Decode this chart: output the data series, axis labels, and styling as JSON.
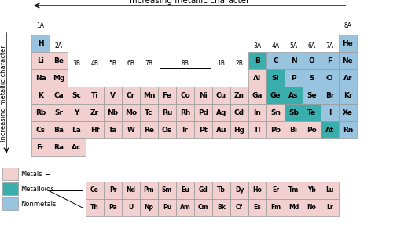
{
  "colors": {
    "metal": "#f2d0d0",
    "metalloid": "#3aadad",
    "nonmetal": "#99c4e0",
    "border": "#999999",
    "bg": "#ffffff"
  },
  "elements": {
    "main_table": [
      {
        "symbol": "H",
        "row": 0,
        "col": 0,
        "type": "nonmetal"
      },
      {
        "symbol": "He",
        "row": 0,
        "col": 17,
        "type": "nonmetal"
      },
      {
        "symbol": "Li",
        "row": 1,
        "col": 0,
        "type": "metal"
      },
      {
        "symbol": "Be",
        "row": 1,
        "col": 1,
        "type": "metal"
      },
      {
        "symbol": "B",
        "row": 1,
        "col": 12,
        "type": "metalloid"
      },
      {
        "symbol": "C",
        "row": 1,
        "col": 13,
        "type": "nonmetal"
      },
      {
        "symbol": "N",
        "row": 1,
        "col": 14,
        "type": "nonmetal"
      },
      {
        "symbol": "O",
        "row": 1,
        "col": 15,
        "type": "nonmetal"
      },
      {
        "symbol": "F",
        "row": 1,
        "col": 16,
        "type": "nonmetal"
      },
      {
        "symbol": "Ne",
        "row": 1,
        "col": 17,
        "type": "nonmetal"
      },
      {
        "symbol": "Na",
        "row": 2,
        "col": 0,
        "type": "metal"
      },
      {
        "symbol": "Mg",
        "row": 2,
        "col": 1,
        "type": "metal"
      },
      {
        "symbol": "Al",
        "row": 2,
        "col": 12,
        "type": "metal"
      },
      {
        "symbol": "Si",
        "row": 2,
        "col": 13,
        "type": "metalloid"
      },
      {
        "symbol": "P",
        "row": 2,
        "col": 14,
        "type": "nonmetal"
      },
      {
        "symbol": "S",
        "row": 2,
        "col": 15,
        "type": "nonmetal"
      },
      {
        "symbol": "Cl",
        "row": 2,
        "col": 16,
        "type": "nonmetal"
      },
      {
        "symbol": "Ar",
        "row": 2,
        "col": 17,
        "type": "nonmetal"
      },
      {
        "symbol": "K",
        "row": 3,
        "col": 0,
        "type": "metal"
      },
      {
        "symbol": "Ca",
        "row": 3,
        "col": 1,
        "type": "metal"
      },
      {
        "symbol": "Sc",
        "row": 3,
        "col": 2,
        "type": "metal"
      },
      {
        "symbol": "Ti",
        "row": 3,
        "col": 3,
        "type": "metal"
      },
      {
        "symbol": "V",
        "row": 3,
        "col": 4,
        "type": "metal"
      },
      {
        "symbol": "Cr",
        "row": 3,
        "col": 5,
        "type": "metal"
      },
      {
        "symbol": "Mn",
        "row": 3,
        "col": 6,
        "type": "metal"
      },
      {
        "symbol": "Fe",
        "row": 3,
        "col": 7,
        "type": "metal"
      },
      {
        "symbol": "Co",
        "row": 3,
        "col": 8,
        "type": "metal"
      },
      {
        "symbol": "Ni",
        "row": 3,
        "col": 9,
        "type": "metal"
      },
      {
        "symbol": "Cu",
        "row": 3,
        "col": 10,
        "type": "metal"
      },
      {
        "symbol": "Zn",
        "row": 3,
        "col": 11,
        "type": "metal"
      },
      {
        "symbol": "Ga",
        "row": 3,
        "col": 12,
        "type": "metal"
      },
      {
        "symbol": "Ge",
        "row": 3,
        "col": 13,
        "type": "metalloid"
      },
      {
        "symbol": "As",
        "row": 3,
        "col": 14,
        "type": "metalloid"
      },
      {
        "symbol": "Se",
        "row": 3,
        "col": 15,
        "type": "nonmetal"
      },
      {
        "symbol": "Br",
        "row": 3,
        "col": 16,
        "type": "nonmetal"
      },
      {
        "symbol": "Kr",
        "row": 3,
        "col": 17,
        "type": "nonmetal"
      },
      {
        "symbol": "Rb",
        "row": 4,
        "col": 0,
        "type": "metal"
      },
      {
        "symbol": "Sr",
        "row": 4,
        "col": 1,
        "type": "metal"
      },
      {
        "symbol": "Y",
        "row": 4,
        "col": 2,
        "type": "metal"
      },
      {
        "symbol": "Zr",
        "row": 4,
        "col": 3,
        "type": "metal"
      },
      {
        "symbol": "Nb",
        "row": 4,
        "col": 4,
        "type": "metal"
      },
      {
        "symbol": "Mo",
        "row": 4,
        "col": 5,
        "type": "metal"
      },
      {
        "symbol": "Tc",
        "row": 4,
        "col": 6,
        "type": "metal"
      },
      {
        "symbol": "Ru",
        "row": 4,
        "col": 7,
        "type": "metal"
      },
      {
        "symbol": "Rh",
        "row": 4,
        "col": 8,
        "type": "metal"
      },
      {
        "symbol": "Pd",
        "row": 4,
        "col": 9,
        "type": "metal"
      },
      {
        "symbol": "Ag",
        "row": 4,
        "col": 10,
        "type": "metal"
      },
      {
        "symbol": "Cd",
        "row": 4,
        "col": 11,
        "type": "metal"
      },
      {
        "symbol": "In",
        "row": 4,
        "col": 12,
        "type": "metal"
      },
      {
        "symbol": "Sn",
        "row": 4,
        "col": 13,
        "type": "metal"
      },
      {
        "symbol": "Sb",
        "row": 4,
        "col": 14,
        "type": "metalloid"
      },
      {
        "symbol": "Te",
        "row": 4,
        "col": 15,
        "type": "metalloid"
      },
      {
        "symbol": "I",
        "row": 4,
        "col": 16,
        "type": "nonmetal"
      },
      {
        "symbol": "Xe",
        "row": 4,
        "col": 17,
        "type": "nonmetal"
      },
      {
        "symbol": "Cs",
        "row": 5,
        "col": 0,
        "type": "metal"
      },
      {
        "symbol": "Ba",
        "row": 5,
        "col": 1,
        "type": "metal"
      },
      {
        "symbol": "La",
        "row": 5,
        "col": 2,
        "type": "metal"
      },
      {
        "symbol": "Hf",
        "row": 5,
        "col": 3,
        "type": "metal"
      },
      {
        "symbol": "Ta",
        "row": 5,
        "col": 4,
        "type": "metal"
      },
      {
        "symbol": "W",
        "row": 5,
        "col": 5,
        "type": "metal"
      },
      {
        "symbol": "Re",
        "row": 5,
        "col": 6,
        "type": "metal"
      },
      {
        "symbol": "Os",
        "row": 5,
        "col": 7,
        "type": "metal"
      },
      {
        "symbol": "Ir",
        "row": 5,
        "col": 8,
        "type": "metal"
      },
      {
        "symbol": "Pt",
        "row": 5,
        "col": 9,
        "type": "metal"
      },
      {
        "symbol": "Au",
        "row": 5,
        "col": 10,
        "type": "metal"
      },
      {
        "symbol": "Hg",
        "row": 5,
        "col": 11,
        "type": "metal"
      },
      {
        "symbol": "Tl",
        "row": 5,
        "col": 12,
        "type": "metal"
      },
      {
        "symbol": "Pb",
        "row": 5,
        "col": 13,
        "type": "metal"
      },
      {
        "symbol": "Bi",
        "row": 5,
        "col": 14,
        "type": "metal"
      },
      {
        "symbol": "Po",
        "row": 5,
        "col": 15,
        "type": "metal"
      },
      {
        "symbol": "At",
        "row": 5,
        "col": 16,
        "type": "metalloid"
      },
      {
        "symbol": "Rn",
        "row": 5,
        "col": 17,
        "type": "nonmetal"
      },
      {
        "symbol": "Fr",
        "row": 6,
        "col": 0,
        "type": "metal"
      },
      {
        "symbol": "Ra",
        "row": 6,
        "col": 1,
        "type": "metal"
      },
      {
        "symbol": "Ac",
        "row": 6,
        "col": 2,
        "type": "metal"
      }
    ],
    "lanthanides": [
      "Ce",
      "Pr",
      "Nd",
      "Pm",
      "Sm",
      "Eu",
      "Gd",
      "Tb",
      "Dy",
      "Ho",
      "Er",
      "Tm",
      "Yb",
      "Lu"
    ],
    "actinides": [
      "Th",
      "Pa",
      "U",
      "Np",
      "Pu",
      "Am",
      "Cm",
      "Bk",
      "Cf",
      "Es",
      "Fm",
      "Md",
      "No",
      "Lr"
    ]
  },
  "group_labels_row0": {
    "1A": 0,
    "8A": 17
  },
  "group_labels_row1": {
    "2A": 1,
    "3A": 12,
    "4A": 13,
    "5A": 14,
    "6A": 15,
    "7A": 16
  },
  "group_labels_row2": {
    "3B": 2,
    "4B": 3,
    "5B": 4,
    "6B": 5,
    "7B": 6,
    "1B": 10,
    "2B": 11
  },
  "top_arrow_text": "Increasing metallic character",
  "left_arrow_text": "Increasing metallic character",
  "legend": [
    {
      "type": "metal",
      "label": "Metals"
    },
    {
      "type": "metalloid",
      "label": "Metalloids"
    },
    {
      "type": "nonmetal",
      "label": "Nonmetals"
    }
  ]
}
